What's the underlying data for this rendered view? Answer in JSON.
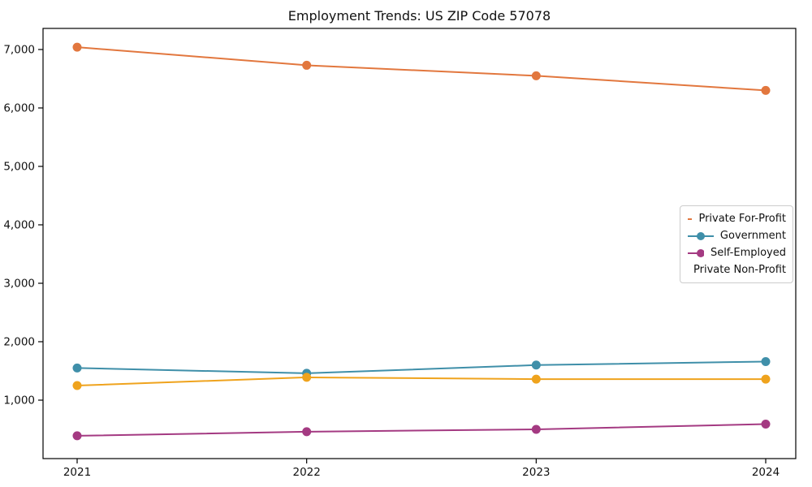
{
  "chart_data": {
    "type": "line",
    "title": "Employment Trends: US ZIP Code 57078",
    "categories": [
      "2021",
      "2022",
      "2023",
      "2024"
    ],
    "series": [
      {
        "name": "Private For-Profit",
        "color": "#e2773e",
        "values": [
          7040,
          6730,
          6550,
          6300
        ]
      },
      {
        "name": "Government",
        "color": "#3f8fa9",
        "values": [
          1550,
          1460,
          1600,
          1660
        ]
      },
      {
        "name": "Self-Employed",
        "color": "#a43a82",
        "values": [
          390,
          460,
          500,
          590
        ]
      },
      {
        "name": "Private Non-Profit",
        "color": "#efa31d",
        "values": [
          1250,
          1390,
          1360,
          1360
        ]
      }
    ],
    "xlabel": "",
    "ylabel": "",
    "ylim": [
      0,
      7361
    ],
    "yticks": [
      1000,
      2000,
      3000,
      4000,
      5000,
      6000,
      7000
    ],
    "ytick_labels": [
      "1,000",
      "2,000",
      "3,000",
      "4,000",
      "5,000",
      "6,000",
      "7,000"
    ],
    "grid": false,
    "marker": "circle",
    "legend_position": "right-middle",
    "frame_color": "#000000",
    "background_color": "#ffffff"
  }
}
